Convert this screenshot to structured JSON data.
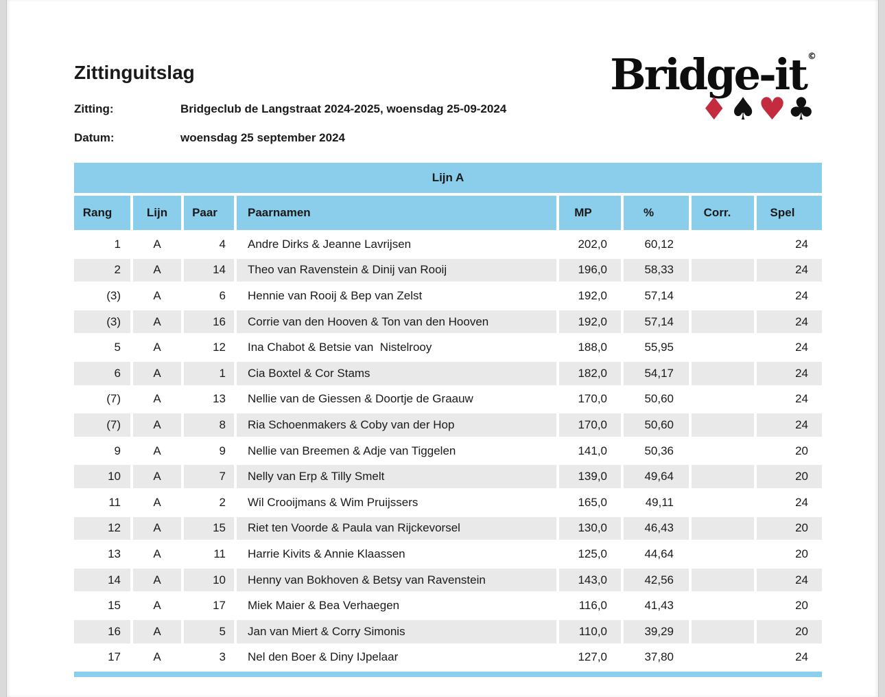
{
  "page": {
    "title": "Zittinguitslag",
    "session_label": "Zitting:",
    "session_value": "Bridgeclub de Langstraat 2024-2025, woensdag 25-09-2024",
    "date_label": "Datum:",
    "date_value": "woensdag 25 september 2024"
  },
  "logo": {
    "text": "Bridge-it",
    "copyright": "©",
    "suits": [
      {
        "name": "diamond",
        "glyph": "♦",
        "color": "#c22c3e"
      },
      {
        "name": "spade",
        "glyph": "♠",
        "color": "#111111"
      },
      {
        "name": "heart",
        "glyph": "♥",
        "color": "#c22c3e"
      },
      {
        "name": "club",
        "glyph": "♣",
        "color": "#111111"
      }
    ]
  },
  "table": {
    "section_title": "Lijn A",
    "columns": [
      "Rang",
      "Lijn",
      "Paar",
      "Paarnamen",
      "MP",
      "%",
      "Corr.",
      "Spel"
    ],
    "rows": [
      {
        "rang": "1",
        "lijn": "A",
        "paar": "4",
        "naam": "Andre Dirks & Jeanne Lavrijsen",
        "mp": "202,0",
        "pct": "60,12",
        "corr": "",
        "spel": "24"
      },
      {
        "rang": "2",
        "lijn": "A",
        "paar": "14",
        "naam": "Theo van Ravenstein & Dinij van Rooij",
        "mp": "196,0",
        "pct": "58,33",
        "corr": "",
        "spel": "24"
      },
      {
        "rang": "(3)",
        "lijn": "A",
        "paar": "6",
        "naam": "Hennie van Rooij & Bep van Zelst",
        "mp": "192,0",
        "pct": "57,14",
        "corr": "",
        "spel": "24"
      },
      {
        "rang": "(3)",
        "lijn": "A",
        "paar": "16",
        "naam": "Corrie van den Hooven & Ton van den Hooven",
        "mp": "192,0",
        "pct": "57,14",
        "corr": "",
        "spel": "24"
      },
      {
        "rang": "5",
        "lijn": "A",
        "paar": "12",
        "naam": "Ina Chabot & Betsie van  Nistelrooy",
        "mp": "188,0",
        "pct": "55,95",
        "corr": "",
        "spel": "24"
      },
      {
        "rang": "6",
        "lijn": "A",
        "paar": "1",
        "naam": "Cia Boxtel & Cor Stams",
        "mp": "182,0",
        "pct": "54,17",
        "corr": "",
        "spel": "24"
      },
      {
        "rang": "(7)",
        "lijn": "A",
        "paar": "13",
        "naam": "Nellie van de Giessen & Doortje de Graauw",
        "mp": "170,0",
        "pct": "50,60",
        "corr": "",
        "spel": "24"
      },
      {
        "rang": "(7)",
        "lijn": "A",
        "paar": "8",
        "naam": "Ria Schoenmakers & Coby van der Hop",
        "mp": "170,0",
        "pct": "50,60",
        "corr": "",
        "spel": "24"
      },
      {
        "rang": "9",
        "lijn": "A",
        "paar": "9",
        "naam": "Nellie van Breemen & Adje van Tiggelen",
        "mp": "141,0",
        "pct": "50,36",
        "corr": "",
        "spel": "20"
      },
      {
        "rang": "10",
        "lijn": "A",
        "paar": "7",
        "naam": "Nelly van Erp & Tilly Smelt",
        "mp": "139,0",
        "pct": "49,64",
        "corr": "",
        "spel": "20"
      },
      {
        "rang": "11",
        "lijn": "A",
        "paar": "2",
        "naam": "Wil Crooijmans & Wim Pruijssers",
        "mp": "165,0",
        "pct": "49,11",
        "corr": "",
        "spel": "24"
      },
      {
        "rang": "12",
        "lijn": "A",
        "paar": "15",
        "naam": "Riet ten Voorde & Paula van Rijckevorsel",
        "mp": "130,0",
        "pct": "46,43",
        "corr": "",
        "spel": "20"
      },
      {
        "rang": "13",
        "lijn": "A",
        "paar": "11",
        "naam": "Harrie Kivits & Annie Klaassen",
        "mp": "125,0",
        "pct": "44,64",
        "corr": "",
        "spel": "20"
      },
      {
        "rang": "14",
        "lijn": "A",
        "paar": "10",
        "naam": "Henny van Bokhoven & Betsy van Ravenstein",
        "mp": "143,0",
        "pct": "42,56",
        "corr": "",
        "spel": "24"
      },
      {
        "rang": "15",
        "lijn": "A",
        "paar": "17",
        "naam": "Miek Maier & Bea Verhaegen",
        "mp": "116,0",
        "pct": "41,43",
        "corr": "",
        "spel": "20"
      },
      {
        "rang": "16",
        "lijn": "A",
        "paar": "5",
        "naam": "Jan van Miert & Corry Simonis",
        "mp": "110,0",
        "pct": "39,29",
        "corr": "",
        "spel": "20"
      },
      {
        "rang": "17",
        "lijn": "A",
        "paar": "3",
        "naam": "Nel den Boer & Diny IJpelaar",
        "mp": "127,0",
        "pct": "37,80",
        "corr": "",
        "spel": "24"
      }
    ]
  },
  "colors": {
    "header_blue": "#8bceec",
    "row_gray": "#e9e9e9",
    "suit_red": "#c22c3e",
    "text": "#1a1a1a"
  }
}
